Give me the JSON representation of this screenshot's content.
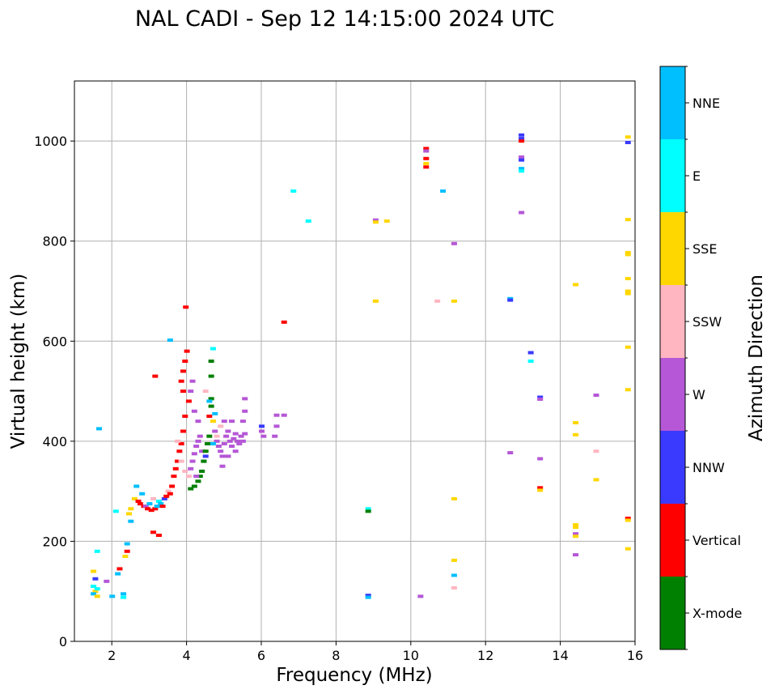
{
  "chart_data": {
    "type": "scatter",
    "title": "NAL CADI - Sep 12 14:15:00 2024 UTC",
    "xlabel": "Frequency (MHz)",
    "ylabel": "Virtual height (km)",
    "xlim": [
      1,
      16
    ],
    "ylim": [
      0,
      1120
    ],
    "xticks": [
      2,
      4,
      6,
      8,
      10,
      12,
      14,
      16
    ],
    "yticks": [
      0,
      200,
      400,
      600,
      800,
      1000
    ],
    "grid": true,
    "colorbar": {
      "title": "Azimuth Direction",
      "categories": [
        {
          "name": "X-mode",
          "color": "#008000"
        },
        {
          "name": "Vertical",
          "color": "#ff0000"
        },
        {
          "name": "NNW",
          "color": "#3a3aff"
        },
        {
          "name": "W",
          "color": "#b557d6"
        },
        {
          "name": "SSW",
          "color": "#ffb6c1"
        },
        {
          "name": "SSE",
          "color": "#ffd700"
        },
        {
          "name": "E",
          "color": "#00ffff"
        },
        {
          "name": "NNE",
          "color": "#00bfff"
        }
      ]
    },
    "echoes": [
      {
        "f": 1.5,
        "h": 110,
        "c": "E"
      },
      {
        "f": 1.55,
        "h": 100,
        "c": "SSE"
      },
      {
        "f": 1.5,
        "h": 95,
        "c": "NNE"
      },
      {
        "f": 1.6,
        "h": 90,
        "c": "SSE"
      },
      {
        "f": 1.55,
        "h": 125,
        "c": "NNW"
      },
      {
        "f": 1.5,
        "h": 140,
        "c": "SSE"
      },
      {
        "f": 1.6,
        "h": 105,
        "c": "E"
      },
      {
        "f": 1.65,
        "h": 425,
        "c": "NNE"
      },
      {
        "f": 1.6,
        "h": 180,
        "c": "E"
      },
      {
        "f": 1.85,
        "h": 120,
        "c": "W"
      },
      {
        "f": 2.0,
        "h": 90,
        "c": "NNE"
      },
      {
        "f": 2.15,
        "h": 135,
        "c": "NNE"
      },
      {
        "f": 2.2,
        "h": 145,
        "c": "Vertical"
      },
      {
        "f": 2.3,
        "h": 95,
        "c": "NNE"
      },
      {
        "f": 2.3,
        "h": 88,
        "c": "E"
      },
      {
        "f": 2.35,
        "h": 170,
        "c": "SSE"
      },
      {
        "f": 2.4,
        "h": 180,
        "c": "Vertical"
      },
      {
        "f": 2.4,
        "h": 195,
        "c": "NNE"
      },
      {
        "f": 2.45,
        "h": 255,
        "c": "SSE"
      },
      {
        "f": 2.5,
        "h": 265,
        "c": "SSE"
      },
      {
        "f": 2.1,
        "h": 260,
        "c": "E"
      },
      {
        "f": 2.5,
        "h": 240,
        "c": "NNE"
      },
      {
        "f": 2.6,
        "h": 285,
        "c": "SSE"
      },
      {
        "f": 2.65,
        "h": 310,
        "c": "NNE"
      },
      {
        "f": 2.7,
        "h": 280,
        "c": "Vertical"
      },
      {
        "f": 2.75,
        "h": 275,
        "c": "Vertical"
      },
      {
        "f": 2.8,
        "h": 295,
        "c": "NNE"
      },
      {
        "f": 2.85,
        "h": 270,
        "c": "Vertical"
      },
      {
        "f": 2.9,
        "h": 270,
        "c": "W"
      },
      {
        "f": 2.95,
        "h": 265,
        "c": "Vertical"
      },
      {
        "f": 3.0,
        "h": 275,
        "c": "NNE"
      },
      {
        "f": 3.05,
        "h": 262,
        "c": "Vertical"
      },
      {
        "f": 3.1,
        "h": 285,
        "c": "SSW"
      },
      {
        "f": 3.15,
        "h": 265,
        "c": "Vertical"
      },
      {
        "f": 3.2,
        "h": 270,
        "c": "NNE"
      },
      {
        "f": 3.25,
        "h": 280,
        "c": "E"
      },
      {
        "f": 3.3,
        "h": 275,
        "c": "NNE"
      },
      {
        "f": 3.35,
        "h": 270,
        "c": "Vertical"
      },
      {
        "f": 3.4,
        "h": 285,
        "c": "NNW"
      },
      {
        "f": 3.45,
        "h": 290,
        "c": "Vertical"
      },
      {
        "f": 3.5,
        "h": 300,
        "c": "SSW"
      },
      {
        "f": 3.55,
        "h": 295,
        "c": "Vertical"
      },
      {
        "f": 3.6,
        "h": 310,
        "c": "Vertical"
      },
      {
        "f": 3.65,
        "h": 330,
        "c": "Vertical"
      },
      {
        "f": 3.7,
        "h": 345,
        "c": "Vertical"
      },
      {
        "f": 3.75,
        "h": 360,
        "c": "Vertical"
      },
      {
        "f": 3.8,
        "h": 380,
        "c": "Vertical"
      },
      {
        "f": 3.85,
        "h": 395,
        "c": "Vertical"
      },
      {
        "f": 3.9,
        "h": 420,
        "c": "Vertical"
      },
      {
        "f": 3.95,
        "h": 450,
        "c": "Vertical"
      },
      {
        "f": 3.85,
        "h": 520,
        "c": "Vertical"
      },
      {
        "f": 3.9,
        "h": 540,
        "c": "Vertical"
      },
      {
        "f": 3.95,
        "h": 560,
        "c": "Vertical"
      },
      {
        "f": 4.0,
        "h": 580,
        "c": "Vertical"
      },
      {
        "f": 3.97,
        "h": 668,
        "c": "Vertical"
      },
      {
        "f": 3.15,
        "h": 530,
        "c": "Vertical"
      },
      {
        "f": 3.55,
        "h": 602,
        "c": "NNE"
      },
      {
        "f": 3.1,
        "h": 218,
        "c": "Vertical"
      },
      {
        "f": 3.25,
        "h": 212,
        "c": "Vertical"
      },
      {
        "f": 3.9,
        "h": 500,
        "c": "Vertical"
      },
      {
        "f": 4.05,
        "h": 480,
        "c": "Vertical"
      },
      {
        "f": 3.75,
        "h": 400,
        "c": "SSW"
      },
      {
        "f": 3.85,
        "h": 360,
        "c": "SSW"
      },
      {
        "f": 3.95,
        "h": 340,
        "c": "SSW"
      },
      {
        "f": 4.05,
        "h": 330,
        "c": "SSW"
      },
      {
        "f": 4.1,
        "h": 345,
        "c": "W"
      },
      {
        "f": 4.15,
        "h": 360,
        "c": "W"
      },
      {
        "f": 4.2,
        "h": 375,
        "c": "W"
      },
      {
        "f": 4.25,
        "h": 390,
        "c": "W"
      },
      {
        "f": 4.3,
        "h": 400,
        "c": "W"
      },
      {
        "f": 4.35,
        "h": 410,
        "c": "W"
      },
      {
        "f": 4.4,
        "h": 380,
        "c": "W"
      },
      {
        "f": 4.45,
        "h": 360,
        "c": "W"
      },
      {
        "f": 4.5,
        "h": 370,
        "c": "NNW"
      },
      {
        "f": 4.55,
        "h": 395,
        "c": "X-mode"
      },
      {
        "f": 4.6,
        "h": 410,
        "c": "X-mode"
      },
      {
        "f": 4.5,
        "h": 380,
        "c": "X-mode"
      },
      {
        "f": 4.45,
        "h": 360,
        "c": "X-mode"
      },
      {
        "f": 4.4,
        "h": 340,
        "c": "X-mode"
      },
      {
        "f": 4.35,
        "h": 330,
        "c": "X-mode"
      },
      {
        "f": 4.3,
        "h": 320,
        "c": "X-mode"
      },
      {
        "f": 4.2,
        "h": 310,
        "c": "X-mode"
      },
      {
        "f": 4.1,
        "h": 305,
        "c": "X-mode"
      },
      {
        "f": 4.65,
        "h": 470,
        "c": "X-mode"
      },
      {
        "f": 4.65,
        "h": 530,
        "c": "X-mode"
      },
      {
        "f": 4.65,
        "h": 560,
        "c": "X-mode"
      },
      {
        "f": 4.65,
        "h": 485,
        "c": "X-mode"
      },
      {
        "f": 4.7,
        "h": 585,
        "c": "E"
      },
      {
        "f": 4.7,
        "h": 440,
        "c": "SSE"
      },
      {
        "f": 4.6,
        "h": 450,
        "c": "Vertical"
      },
      {
        "f": 4.75,
        "h": 420,
        "c": "W"
      },
      {
        "f": 4.8,
        "h": 400,
        "c": "W"
      },
      {
        "f": 4.85,
        "h": 390,
        "c": "W"
      },
      {
        "f": 4.9,
        "h": 380,
        "c": "W"
      },
      {
        "f": 4.95,
        "h": 370,
        "c": "W"
      },
      {
        "f": 5.0,
        "h": 395,
        "c": "W"
      },
      {
        "f": 5.05,
        "h": 410,
        "c": "W"
      },
      {
        "f": 5.1,
        "h": 420,
        "c": "W"
      },
      {
        "f": 5.15,
        "h": 400,
        "c": "W"
      },
      {
        "f": 5.2,
        "h": 390,
        "c": "W"
      },
      {
        "f": 5.25,
        "h": 405,
        "c": "W"
      },
      {
        "f": 5.3,
        "h": 415,
        "c": "W"
      },
      {
        "f": 5.35,
        "h": 400,
        "c": "W"
      },
      {
        "f": 5.4,
        "h": 395,
        "c": "W"
      },
      {
        "f": 5.45,
        "h": 410,
        "c": "W"
      },
      {
        "f": 5.5,
        "h": 400,
        "c": "W"
      },
      {
        "f": 5.55,
        "h": 415,
        "c": "W"
      },
      {
        "f": 5.5,
        "h": 440,
        "c": "W"
      },
      {
        "f": 5.55,
        "h": 460,
        "c": "W"
      },
      {
        "f": 5.55,
        "h": 485,
        "c": "W"
      },
      {
        "f": 5.2,
        "h": 440,
        "c": "W"
      },
      {
        "f": 5.0,
        "h": 440,
        "c": "W"
      },
      {
        "f": 4.9,
        "h": 430,
        "c": "SSW"
      },
      {
        "f": 4.8,
        "h": 410,
        "c": "SSW"
      },
      {
        "f": 4.7,
        "h": 395,
        "c": "NNE"
      },
      {
        "f": 4.75,
        "h": 455,
        "c": "NNE"
      },
      {
        "f": 4.6,
        "h": 480,
        "c": "NNE"
      },
      {
        "f": 4.5,
        "h": 500,
        "c": "SSW"
      },
      {
        "f": 4.3,
        "h": 440,
        "c": "W"
      },
      {
        "f": 4.2,
        "h": 460,
        "c": "W"
      },
      {
        "f": 4.1,
        "h": 500,
        "c": "W"
      },
      {
        "f": 4.15,
        "h": 520,
        "c": "W"
      },
      {
        "f": 5.3,
        "h": 380,
        "c": "W"
      },
      {
        "f": 5.1,
        "h": 370,
        "c": "W"
      },
      {
        "f": 4.95,
        "h": 350,
        "c": "W"
      },
      {
        "f": 4.25,
        "h": 330,
        "c": "W"
      },
      {
        "f": 6.0,
        "h": 420,
        "c": "W"
      },
      {
        "f": 6.05,
        "h": 410,
        "c": "W"
      },
      {
        "f": 6.0,
        "h": 430,
        "c": "NNW"
      },
      {
        "f": 6.4,
        "h": 430,
        "c": "W"
      },
      {
        "f": 6.6,
        "h": 452,
        "c": "W"
      },
      {
        "f": 6.4,
        "h": 452,
        "c": "W"
      },
      {
        "f": 6.35,
        "h": 410,
        "c": "W"
      },
      {
        "f": 6.6,
        "h": 638,
        "c": "Vertical"
      },
      {
        "f": 6.85,
        "h": 900,
        "c": "E"
      },
      {
        "f": 7.25,
        "h": 840,
        "c": "E"
      },
      {
        "f": 8.85,
        "h": 265,
        "c": "E"
      },
      {
        "f": 8.85,
        "h": 260,
        "c": "X-mode"
      },
      {
        "f": 8.85,
        "h": 92,
        "c": "NNW"
      },
      {
        "f": 8.85,
        "h": 88,
        "c": "NNE"
      },
      {
        "f": 9.05,
        "h": 842,
        "c": "W"
      },
      {
        "f": 9.05,
        "h": 838,
        "c": "SSE"
      },
      {
        "f": 9.35,
        "h": 840,
        "c": "SSE"
      },
      {
        "f": 9.05,
        "h": 680,
        "c": "SSE"
      },
      {
        "f": 10.25,
        "h": 90,
        "c": "W"
      },
      {
        "f": 10.4,
        "h": 985,
        "c": "Vertical"
      },
      {
        "f": 10.4,
        "h": 980,
        "c": "W"
      },
      {
        "f": 10.4,
        "h": 965,
        "c": "Vertical"
      },
      {
        "f": 10.4,
        "h": 955,
        "c": "SSE"
      },
      {
        "f": 10.4,
        "h": 948,
        "c": "Vertical"
      },
      {
        "f": 10.85,
        "h": 900,
        "c": "NNE"
      },
      {
        "f": 10.7,
        "h": 680,
        "c": "SSW"
      },
      {
        "f": 11.15,
        "h": 795,
        "c": "W"
      },
      {
        "f": 11.15,
        "h": 680,
        "c": "SSE"
      },
      {
        "f": 11.15,
        "h": 285,
        "c": "SSE"
      },
      {
        "f": 11.15,
        "h": 162,
        "c": "SSE"
      },
      {
        "f": 11.15,
        "h": 132,
        "c": "NNE"
      },
      {
        "f": 11.15,
        "h": 107,
        "c": "SSW"
      },
      {
        "f": 12.65,
        "h": 685,
        "c": "NNE"
      },
      {
        "f": 12.65,
        "h": 682,
        "c": "NNW"
      },
      {
        "f": 12.65,
        "h": 377,
        "c": "W"
      },
      {
        "f": 12.95,
        "h": 1012,
        "c": "NNW"
      },
      {
        "f": 12.95,
        "h": 1005,
        "c": "NNW"
      },
      {
        "f": 12.95,
        "h": 1000,
        "c": "Vertical"
      },
      {
        "f": 12.95,
        "h": 968,
        "c": "W"
      },
      {
        "f": 12.95,
        "h": 962,
        "c": "NNW"
      },
      {
        "f": 12.95,
        "h": 945,
        "c": "NNE"
      },
      {
        "f": 12.95,
        "h": 940,
        "c": "E"
      },
      {
        "f": 12.95,
        "h": 857,
        "c": "W"
      },
      {
        "f": 13.2,
        "h": 577,
        "c": "NNW"
      },
      {
        "f": 13.2,
        "h": 560,
        "c": "E"
      },
      {
        "f": 13.45,
        "h": 488,
        "c": "NNW"
      },
      {
        "f": 13.45,
        "h": 484,
        "c": "W"
      },
      {
        "f": 13.45,
        "h": 365,
        "c": "W"
      },
      {
        "f": 13.45,
        "h": 307,
        "c": "Vertical"
      },
      {
        "f": 13.45,
        "h": 302,
        "c": "SSE"
      },
      {
        "f": 14.4,
        "h": 713,
        "c": "SSE"
      },
      {
        "f": 14.4,
        "h": 437,
        "c": "SSE"
      },
      {
        "f": 14.4,
        "h": 413,
        "c": "SSE"
      },
      {
        "f": 14.4,
        "h": 233,
        "c": "SSE"
      },
      {
        "f": 14.4,
        "h": 228,
        "c": "SSE"
      },
      {
        "f": 14.4,
        "h": 215,
        "c": "W"
      },
      {
        "f": 14.4,
        "h": 210,
        "c": "SSE"
      },
      {
        "f": 14.4,
        "h": 173,
        "c": "W"
      },
      {
        "f": 14.95,
        "h": 492,
        "c": "W"
      },
      {
        "f": 14.95,
        "h": 380,
        "c": "SSW"
      },
      {
        "f": 14.95,
        "h": 323,
        "c": "SSE"
      },
      {
        "f": 15.8,
        "h": 1008,
        "c": "SSE"
      },
      {
        "f": 15.8,
        "h": 997,
        "c": "NNW"
      },
      {
        "f": 15.8,
        "h": 843,
        "c": "SSE"
      },
      {
        "f": 15.8,
        "h": 777,
        "c": "SSE"
      },
      {
        "f": 15.8,
        "h": 773,
        "c": "SSE"
      },
      {
        "f": 15.8,
        "h": 725,
        "c": "SSE"
      },
      {
        "f": 15.8,
        "h": 700,
        "c": "SSE"
      },
      {
        "f": 15.8,
        "h": 695,
        "c": "SSE"
      },
      {
        "f": 15.8,
        "h": 588,
        "c": "SSE"
      },
      {
        "f": 15.8,
        "h": 503,
        "c": "SSE"
      },
      {
        "f": 15.8,
        "h": 246,
        "c": "Vertical"
      },
      {
        "f": 15.8,
        "h": 242,
        "c": "SSE"
      },
      {
        "f": 15.8,
        "h": 185,
        "c": "SSE"
      }
    ]
  }
}
